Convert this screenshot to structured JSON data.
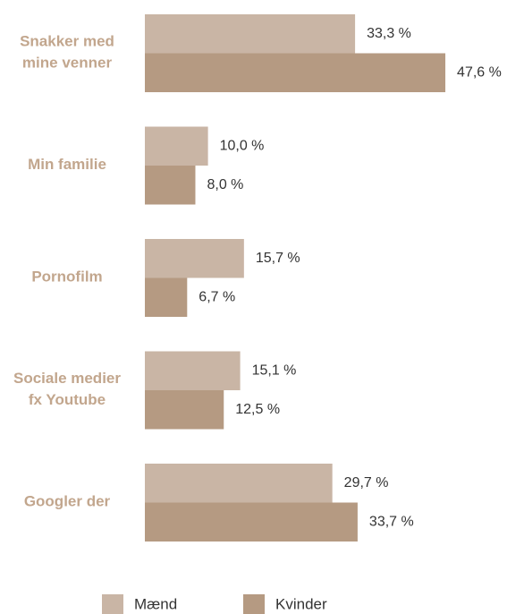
{
  "chart_data": {
    "type": "bar",
    "orientation": "horizontal",
    "categories": [
      [
        "Snakker med",
        "mine venner"
      ],
      [
        "Min familie"
      ],
      [
        "Pornofilm"
      ],
      [
        "Sociale medier",
        "fx Youtube"
      ],
      [
        "Googler der"
      ]
    ],
    "series": [
      {
        "name": "Mænd",
        "color": "#c9b5a5",
        "values": [
          33.3,
          10.0,
          15.7,
          15.1,
          29.7
        ],
        "value_labels": [
          "33,3 %",
          "10,0 %",
          "15,7 %",
          "15,1 %",
          "29,7 %"
        ]
      },
      {
        "name": "Kvinder",
        "color": "#b59a82",
        "values": [
          47.6,
          8.0,
          6.7,
          12.5,
          33.7
        ],
        "value_labels": [
          "47,6 %",
          "8,0 %",
          "6,7 %",
          "12,5 %",
          "33,7 %"
        ]
      }
    ],
    "legend": "bottom"
  }
}
